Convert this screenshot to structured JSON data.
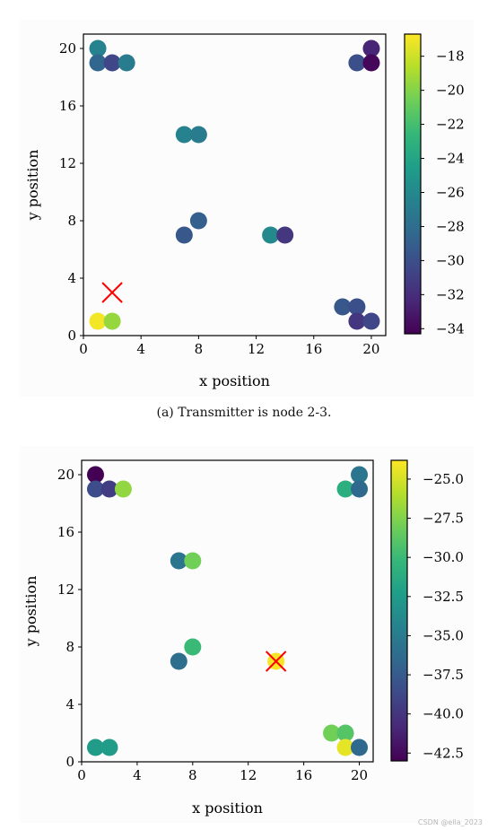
{
  "figure": {
    "watermark": "CSDN @ella_2023"
  },
  "chart_data": [
    {
      "type": "scatter",
      "caption": "(a) Transmitter is node 2-3.",
      "xlabel": "x position",
      "ylabel": "y position",
      "xlim": [
        0,
        21
      ],
      "ylim": [
        0,
        21
      ],
      "xticks": [
        0,
        4,
        8,
        12,
        16,
        20
      ],
      "yticks": [
        0,
        4,
        8,
        12,
        16,
        20
      ],
      "colorbar": {
        "colormap": "viridis",
        "min": -34.3,
        "max": -16.7,
        "ticks": [
          -18,
          -20,
          -22,
          -24,
          -26,
          -28,
          -30,
          -32,
          -34
        ]
      },
      "points": [
        {
          "x": 1,
          "y": 20,
          "v": -26.5
        },
        {
          "x": 1,
          "y": 19,
          "v": -28.5
        },
        {
          "x": 2,
          "y": 19,
          "v": -30.5
        },
        {
          "x": 3,
          "y": 19,
          "v": -27.0
        },
        {
          "x": 20,
          "y": 20,
          "v": -32.5
        },
        {
          "x": 19,
          "y": 19,
          "v": -30.0
        },
        {
          "x": 20,
          "y": 19,
          "v": -34.0
        },
        {
          "x": 7,
          "y": 14,
          "v": -26.5
        },
        {
          "x": 8,
          "y": 14,
          "v": -27.0
        },
        {
          "x": 8,
          "y": 8,
          "v": -29.0
        },
        {
          "x": 7,
          "y": 7,
          "v": -29.5
        },
        {
          "x": 13,
          "y": 7,
          "v": -26.0
        },
        {
          "x": 14,
          "y": 7,
          "v": -31.5
        },
        {
          "x": 1,
          "y": 1,
          "v": -17.0
        },
        {
          "x": 2,
          "y": 1,
          "v": -19.5
        },
        {
          "x": 18,
          "y": 2,
          "v": -29.5
        },
        {
          "x": 19,
          "y": 2,
          "v": -30.0
        },
        {
          "x": 19,
          "y": 1,
          "v": -31.5
        },
        {
          "x": 20,
          "y": 1,
          "v": -30.5
        }
      ],
      "transmitter": {
        "x": 2,
        "y": 3,
        "marker": "x",
        "color": "#ff0000"
      }
    },
    {
      "type": "scatter",
      "caption": "",
      "xlabel": "x position",
      "ylabel": "y position",
      "xlim": [
        0,
        21
      ],
      "ylim": [
        0,
        21
      ],
      "xticks": [
        0,
        4,
        8,
        12,
        16,
        20
      ],
      "yticks": [
        0,
        4,
        8,
        12,
        16,
        20
      ],
      "colorbar": {
        "colormap": "viridis",
        "min": -43.0,
        "max": -23.8,
        "ticks": [
          -25.0,
          -27.5,
          -30.0,
          -32.5,
          -35.0,
          -37.5,
          -40.0,
          -42.5
        ],
        "tick_labels": [
          "−25.0",
          "−27.5",
          "−30.0",
          "−32.5",
          "−35.0",
          "−37.5",
          "−40.0",
          "−42.5"
        ]
      },
      "points": [
        {
          "x": 1,
          "y": 20,
          "v": -43.0
        },
        {
          "x": 1,
          "y": 19,
          "v": -38.5
        },
        {
          "x": 2,
          "y": 19,
          "v": -39.5
        },
        {
          "x": 3,
          "y": 19,
          "v": -27.0
        },
        {
          "x": 20,
          "y": 20,
          "v": -35.5
        },
        {
          "x": 19,
          "y": 19,
          "v": -31.0
        },
        {
          "x": 20,
          "y": 19,
          "v": -36.5
        },
        {
          "x": 7,
          "y": 14,
          "v": -35.5
        },
        {
          "x": 8,
          "y": 14,
          "v": -28.0
        },
        {
          "x": 8,
          "y": 8,
          "v": -30.0
        },
        {
          "x": 7,
          "y": 7,
          "v": -36.0
        },
        {
          "x": 14,
          "y": 7,
          "v": -24.0
        },
        {
          "x": 1,
          "y": 1,
          "v": -32.5
        },
        {
          "x": 2,
          "y": 1,
          "v": -32.5
        },
        {
          "x": 18,
          "y": 2,
          "v": -28.0
        },
        {
          "x": 19,
          "y": 2,
          "v": -29.0
        },
        {
          "x": 19,
          "y": 1,
          "v": -24.5
        },
        {
          "x": 20,
          "y": 1,
          "v": -36.5
        }
      ],
      "transmitter": {
        "x": 14,
        "y": 7,
        "marker": "x",
        "color": "#ff0000"
      }
    }
  ]
}
